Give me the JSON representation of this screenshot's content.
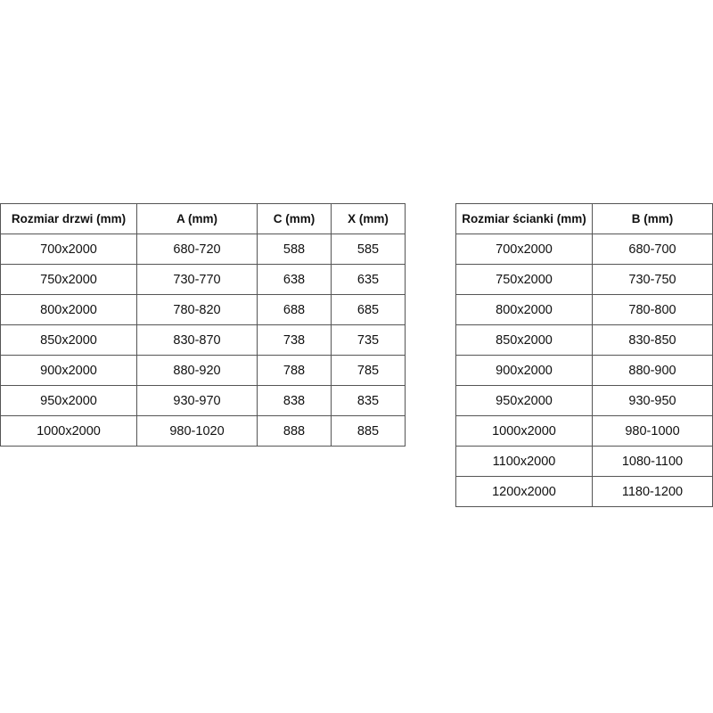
{
  "doors_table": {
    "headers": [
      "Rozmiar drzwi (mm)",
      "A (mm)",
      "C (mm)",
      "X (mm)"
    ],
    "rows": [
      [
        "700x2000",
        "680-720",
        "588",
        "585"
      ],
      [
        "750x2000",
        "730-770",
        "638",
        "635"
      ],
      [
        "800x2000",
        "780-820",
        "688",
        "685"
      ],
      [
        "850x2000",
        "830-870",
        "738",
        "735"
      ],
      [
        "900x2000",
        "880-920",
        "788",
        "785"
      ],
      [
        "950x2000",
        "930-970",
        "838",
        "835"
      ],
      [
        "1000x2000",
        "980-1020",
        "888",
        "885"
      ]
    ]
  },
  "wall_table": {
    "headers": [
      "Rozmiar ścianki (mm)",
      "B (mm)"
    ],
    "rows": [
      [
        "700x2000",
        "680-700"
      ],
      [
        "750x2000",
        "730-750"
      ],
      [
        "800x2000",
        "780-800"
      ],
      [
        "850x2000",
        "830-850"
      ],
      [
        "900x2000",
        "880-900"
      ],
      [
        "950x2000",
        "930-950"
      ],
      [
        "1000x2000",
        "980-1000"
      ],
      [
        "1100x2000",
        "1080-1100"
      ],
      [
        "1200x2000",
        "1180-1200"
      ]
    ]
  }
}
